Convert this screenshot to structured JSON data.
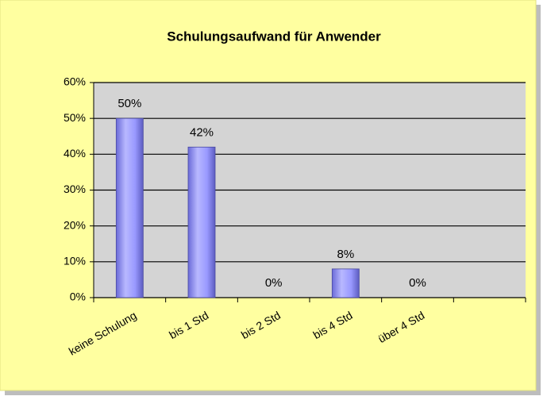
{
  "chart_data": {
    "type": "bar",
    "title": "Schulungsaufwand für Anwender",
    "categories": [
      "keine Schulung",
      "bis 1 Std",
      "bis 2 Std",
      "bis 4 Std",
      "über 4 Std",
      null
    ],
    "values": [
      50,
      42,
      0,
      8,
      0,
      null
    ],
    "value_labels": [
      "50%",
      "42%",
      "0%",
      "8%",
      "0%",
      null
    ],
    "color": "#9999ff",
    "ylim": [
      0,
      60
    ],
    "yticks": [
      {
        "value": 0,
        "label": "0%"
      },
      {
        "value": 10,
        "label": "10%"
      },
      {
        "value": 20,
        "label": "20%"
      },
      {
        "value": 30,
        "label": "30%"
      },
      {
        "value": 40,
        "label": "40%"
      },
      {
        "value": 50,
        "label": "50%"
      },
      {
        "value": 60,
        "label": "60%"
      }
    ],
    "grid": true
  }
}
